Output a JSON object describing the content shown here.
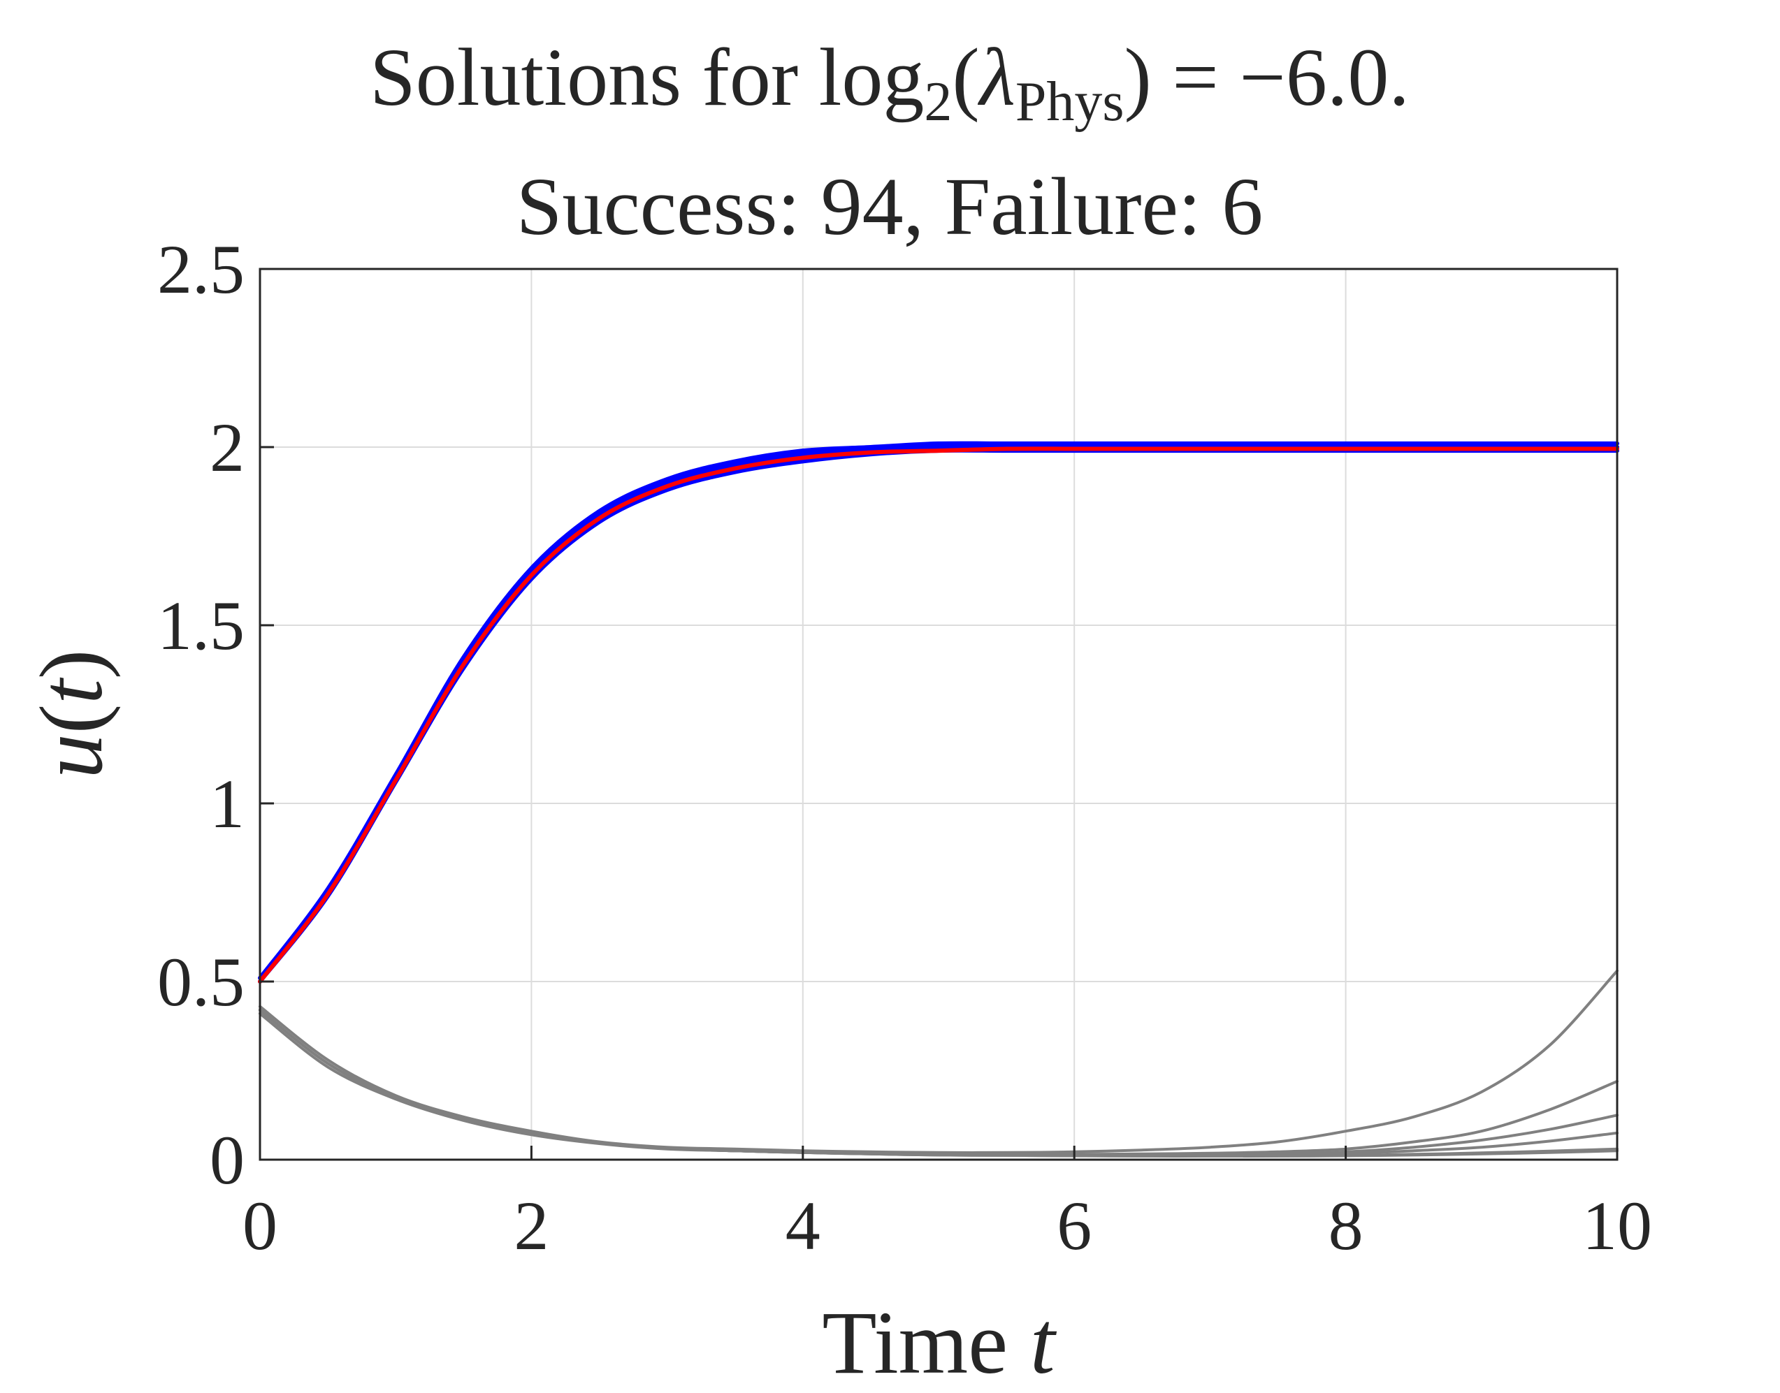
{
  "chart_data": {
    "type": "line",
    "title": {
      "prefix": "Solutions for ",
      "func": "log",
      "func_subscript": "2",
      "open": "(",
      "symbol": "λ",
      "symbol_subscript": "Phys",
      "close": ")",
      "suffix": " = −6.0."
    },
    "subtitle": "Success: 94, Failure: 6",
    "xlabel": {
      "text": "Time ",
      "var": "t"
    },
    "ylabel": {
      "func": "u",
      "open": "(",
      "var": "t",
      "close": ")"
    },
    "xlim": [
      0,
      10
    ],
    "ylim": [
      0,
      2.5
    ],
    "xticks": [
      0,
      2,
      4,
      6,
      8,
      10
    ],
    "xtick_labels": [
      "0",
      "2",
      "4",
      "6",
      "8",
      "10"
    ],
    "yticks": [
      0,
      0.5,
      1,
      1.5,
      2,
      2.5
    ],
    "ytick_labels": [
      "0",
      "0.5",
      "1",
      "1.5",
      "2",
      "2.5"
    ],
    "grid": true,
    "colors": {
      "success": "#0000ff",
      "reference": "#ff0000",
      "failure": "#808080",
      "axis": "#262626",
      "grid": "#dcdcdc"
    },
    "x": [
      0,
      0.5,
      1,
      1.5,
      2,
      2.5,
      3,
      3.5,
      4,
      4.5,
      5,
      5.5,
      6,
      6.5,
      7,
      7.5,
      8,
      8.5,
      9,
      9.5,
      10
    ],
    "series": [
      {
        "role": "success",
        "values": [
          0.51,
          0.76,
          1.08,
          1.41,
          1.66,
          1.82,
          1.91,
          1.96,
          1.99,
          2.0,
          2.01,
          2.01,
          2.01,
          2.01,
          2.01,
          2.01,
          2.01,
          2.01,
          2.01,
          2.01,
          2.01
        ]
      },
      {
        "role": "success",
        "values": [
          0.5,
          0.75,
          1.07,
          1.4,
          1.65,
          1.81,
          1.9,
          1.95,
          1.98,
          1.99,
          2.0,
          2.0,
          2.0,
          2.0,
          2.0,
          2.0,
          2.0,
          2.0,
          2.0,
          2.0,
          2.0
        ]
      },
      {
        "role": "success",
        "values": [
          0.5,
          0.74,
          1.06,
          1.38,
          1.63,
          1.79,
          1.88,
          1.93,
          1.96,
          1.98,
          1.99,
          1.99,
          1.99,
          1.99,
          1.99,
          1.99,
          1.99,
          1.99,
          1.99,
          1.99,
          1.99
        ]
      },
      {
        "role": "reference",
        "values": [
          0.5,
          0.745,
          1.065,
          1.39,
          1.64,
          1.8,
          1.89,
          1.94,
          1.97,
          1.985,
          1.99,
          1.995,
          1.995,
          1.995,
          1.995,
          1.995,
          1.995,
          1.995,
          1.995,
          1.995,
          1.995
        ]
      },
      {
        "role": "failure",
        "values": [
          0.43,
          0.28,
          0.18,
          0.12,
          0.08,
          0.05,
          0.035,
          0.03,
          0.025,
          0.022,
          0.02,
          0.02,
          0.022,
          0.027,
          0.035,
          0.05,
          0.08,
          0.12,
          0.19,
          0.32,
          0.53
        ]
      },
      {
        "role": "failure",
        "values": [
          0.41,
          0.26,
          0.17,
          0.11,
          0.07,
          0.045,
          0.03,
          0.025,
          0.02,
          0.018,
          0.016,
          0.015,
          0.015,
          0.016,
          0.018,
          0.022,
          0.03,
          0.05,
          0.08,
          0.14,
          0.22
        ]
      },
      {
        "role": "failure",
        "values": [
          0.42,
          0.27,
          0.175,
          0.115,
          0.075,
          0.048,
          0.032,
          0.025,
          0.02,
          0.017,
          0.015,
          0.014,
          0.013,
          0.013,
          0.014,
          0.016,
          0.022,
          0.035,
          0.055,
          0.085,
          0.125
        ]
      },
      {
        "role": "failure",
        "values": [
          0.42,
          0.27,
          0.175,
          0.115,
          0.075,
          0.048,
          0.032,
          0.025,
          0.02,
          0.016,
          0.014,
          0.013,
          0.012,
          0.012,
          0.012,
          0.013,
          0.017,
          0.025,
          0.035,
          0.052,
          0.075
        ]
      },
      {
        "role": "failure",
        "values": [
          0.42,
          0.27,
          0.175,
          0.115,
          0.075,
          0.048,
          0.032,
          0.025,
          0.02,
          0.016,
          0.013,
          0.012,
          0.011,
          0.011,
          0.011,
          0.011,
          0.012,
          0.015,
          0.019,
          0.024,
          0.03
        ]
      },
      {
        "role": "failure",
        "values": [
          0.42,
          0.27,
          0.175,
          0.115,
          0.075,
          0.048,
          0.032,
          0.025,
          0.02,
          0.016,
          0.013,
          0.012,
          0.011,
          0.01,
          0.01,
          0.01,
          0.011,
          0.013,
          0.016,
          0.02,
          0.025
        ]
      }
    ]
  }
}
